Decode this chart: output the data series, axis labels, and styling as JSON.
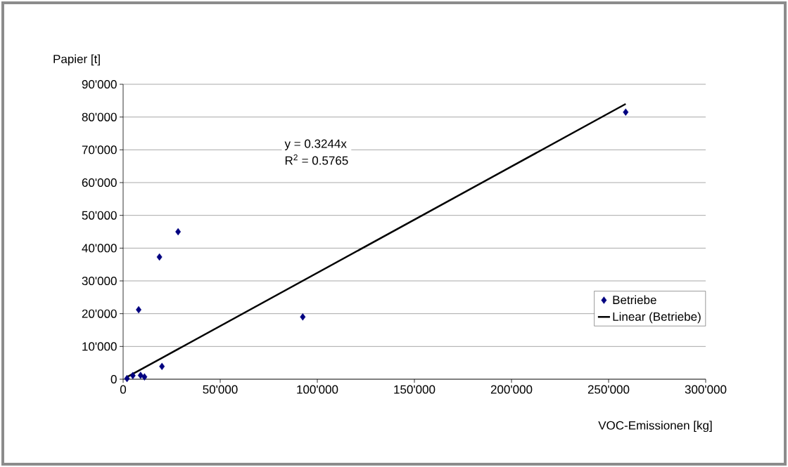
{
  "chart_data": {
    "type": "scatter",
    "xlabel": "VOC-Emissionen [kg]",
    "ylabel": "Papier [t]",
    "xlim": [
      0,
      300000
    ],
    "ylim": [
      0,
      90000
    ],
    "xticks": [
      0,
      {
        "value": 50000,
        "label": "50'000"
      },
      {
        "value": 100000,
        "label": "100'000"
      },
      {
        "value": 150000,
        "label": "150'000"
      },
      {
        "value": 200000,
        "label": "200'000"
      },
      {
        "value": 250000,
        "label": "250'000"
      },
      {
        "value": 300000,
        "label": "300'000"
      }
    ],
    "yticks": [
      0,
      {
        "value": 10000,
        "label": "10'000"
      },
      {
        "value": 20000,
        "label": "20'000"
      },
      {
        "value": 30000,
        "label": "30'000"
      },
      {
        "value": 40000,
        "label": "40'000"
      },
      {
        "value": 50000,
        "label": "50'000"
      },
      {
        "value": 60000,
        "label": "60'000"
      },
      {
        "value": 70000,
        "label": "70'000"
      },
      {
        "value": 80000,
        "label": "80'000"
      },
      {
        "value": 90000,
        "label": "90'000"
      }
    ],
    "grid": "y",
    "legend": "right",
    "annotations": [
      "y = 0.3244x",
      "R$^{2}$ = 0.5765"
    ],
    "series": [
      {
        "name": "Betriebe",
        "marker": "diamond",
        "color": "#000080",
        "x": [
          2000,
          5000,
          9000,
          11000,
          20000,
          8000,
          18700,
          28300,
          92500,
          258800
        ],
        "values": [
          200,
          1100,
          1200,
          700,
          3900,
          21200,
          37300,
          45000,
          19000,
          81500
        ]
      },
      {
        "name": "Linear (Betriebe)",
        "type": "line",
        "marker": "none",
        "color": "#000000",
        "x": [
          2000,
          258800
        ],
        "values": [
          650,
          84000
        ]
      }
    ]
  }
}
